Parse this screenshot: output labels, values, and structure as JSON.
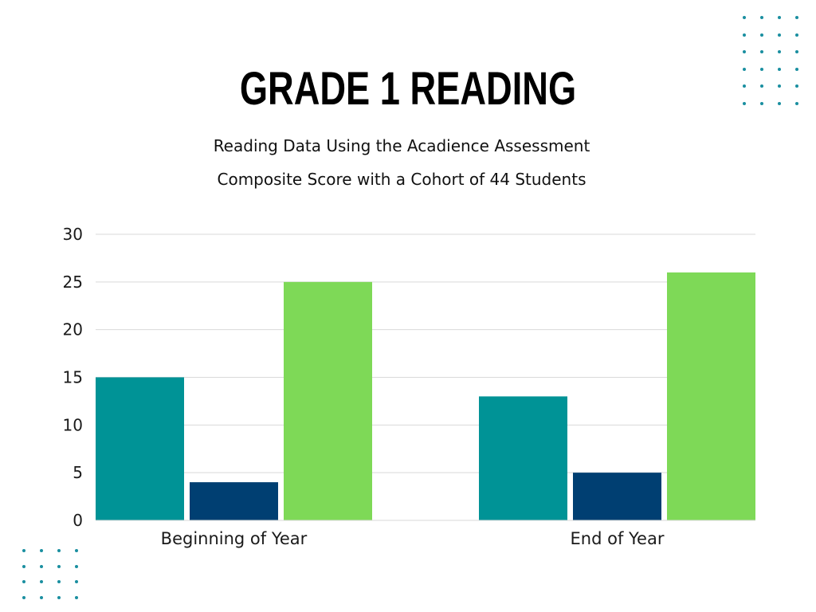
{
  "page": {
    "title": "GRADE 1 READING",
    "subtitle_line1": "Reading Data Using the Acadience Assessment",
    "subtitle_line2": "Composite Score with a Cohort of 44 Students",
    "dot_color": "#1a8fa0"
  },
  "chart_data": {
    "type": "bar",
    "categories": [
      "Beginning of Year",
      "End of Year"
    ],
    "series": [
      {
        "values": [
          15,
          13
        ],
        "color": "#009396"
      },
      {
        "values": [
          4,
          5
        ],
        "color": "#003f72"
      },
      {
        "values": [
          25,
          26
        ],
        "color": "#7ed957"
      }
    ],
    "ylim": [
      0,
      30
    ],
    "yticks": [
      0,
      5,
      10,
      15,
      20,
      25,
      30
    ],
    "grid": true,
    "legend": "none"
  }
}
